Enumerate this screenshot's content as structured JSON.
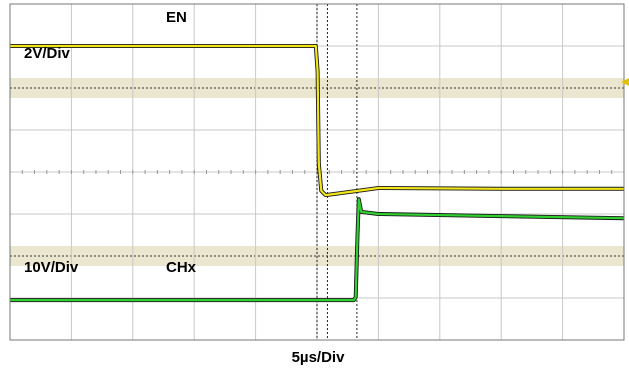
{
  "chart_data": {
    "type": "line",
    "title": "",
    "xlabel": "5µs/Div",
    "grid": true,
    "x_unit": "µs",
    "x_range": [
      -25,
      25
    ],
    "x_divisions": 10,
    "y_divisions": 8,
    "cursors_x": [
      0,
      0.85,
      3.25
    ],
    "series": [
      {
        "name": "EN",
        "scale_label": "2V/Div",
        "color": "#f2e61b",
        "unit": "div",
        "points": [
          [
            -25,
            3.0
          ],
          [
            -0.1,
            3.0
          ],
          [
            0.05,
            2.4
          ],
          [
            0.15,
            0.2
          ],
          [
            0.35,
            -0.45
          ],
          [
            0.7,
            -0.55
          ],
          [
            2.0,
            -0.5
          ],
          [
            3.3,
            -0.45
          ],
          [
            5.0,
            -0.38
          ],
          [
            15.0,
            -0.4
          ],
          [
            25.0,
            -0.4
          ]
        ]
      },
      {
        "name": "CHx",
        "scale_label": "10V/Div",
        "color": "#2fd02f",
        "unit": "div",
        "points": [
          [
            -25,
            -3.05
          ],
          [
            3.0,
            -3.05
          ],
          [
            3.15,
            -2.98
          ],
          [
            3.3,
            -1.5
          ],
          [
            3.4,
            -0.65
          ],
          [
            3.6,
            -0.95
          ],
          [
            5.0,
            -1.0
          ],
          [
            15.0,
            -1.05
          ],
          [
            25.0,
            -1.1
          ]
        ]
      }
    ]
  }
}
